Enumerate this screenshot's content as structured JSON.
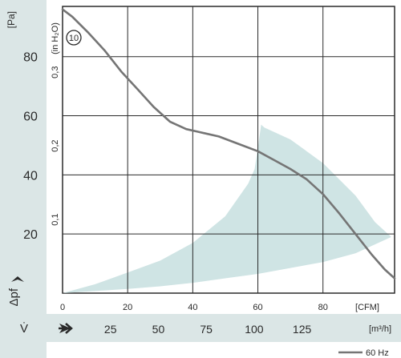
{
  "chart_data": {
    "type": "line",
    "curve_id": "10",
    "x_axis_cfm": {
      "label": "[CFM]",
      "range": [
        0,
        102
      ],
      "ticks": [
        0,
        20,
        40,
        60,
        80
      ],
      "tick_labels": [
        "0",
        "20",
        "40",
        "60",
        "80"
      ]
    },
    "x_axis_m3h": {
      "label": "[m³/h]",
      "symbol": "V̇",
      "ticks": [
        25,
        50,
        75,
        100,
        125
      ],
      "tick_labels": [
        "25",
        "50",
        "75",
        "100",
        "125"
      ]
    },
    "y_axis_pa": {
      "label": "[Pa]",
      "symbol": "Δpf",
      "range": [
        0,
        97
      ],
      "ticks": [
        20,
        40,
        60,
        80
      ],
      "tick_labels": [
        "20",
        "40",
        "60",
        "80"
      ]
    },
    "y_axis_inh2o": {
      "label": "(in H₂O)",
      "ticks": [
        0.1,
        0.2,
        0.3
      ],
      "tick_labels": [
        "0,1",
        "0,2",
        "0,3"
      ]
    },
    "series": [
      {
        "name": "60 Hz",
        "color": "#757575",
        "x": [
          0,
          3,
          8,
          13,
          18,
          23,
          28,
          33,
          38,
          42,
          48,
          54,
          60,
          65,
          70,
          75,
          80,
          85,
          90,
          95,
          99,
          102
        ],
        "y": [
          96,
          93.5,
          88,
          82,
          75,
          69,
          63,
          58,
          55.5,
          54.5,
          53,
          50.5,
          48,
          45,
          42,
          38.5,
          33.5,
          27,
          20,
          13,
          8,
          5
        ]
      }
    ],
    "operating_region": {
      "color": "#cfe4e4",
      "upper": {
        "x": [
          0,
          10,
          20,
          30,
          40,
          50,
          57,
          59,
          60,
          61
        ],
        "y": [
          0,
          3,
          7,
          11,
          17,
          26,
          37,
          42,
          49,
          57
        ]
      },
      "top": {
        "x": [
          61,
          62,
          70,
          80,
          90,
          96,
          101
        ],
        "y": [
          57,
          56,
          52,
          44,
          33,
          24,
          19
        ]
      },
      "lower": {
        "x": [
          101,
          90,
          80,
          70,
          60,
          50,
          40,
          30,
          20,
          10,
          0
        ],
        "y": [
          19,
          13.5,
          10.5,
          8.5,
          6.5,
          5,
          3.5,
          2.3,
          1.4,
          0.7,
          0
        ]
      }
    },
    "grid": true
  }
}
